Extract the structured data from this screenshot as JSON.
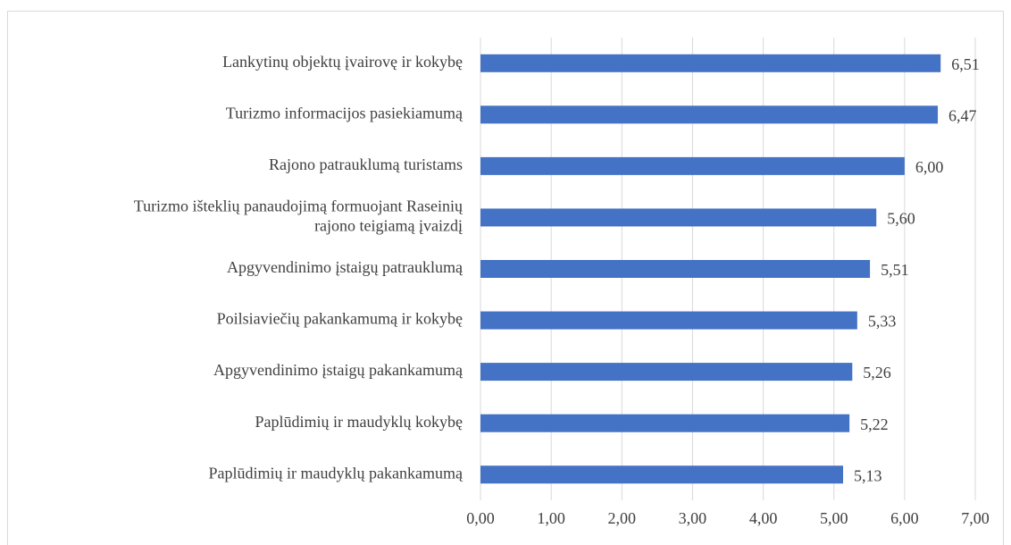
{
  "chart_data": {
    "type": "barh",
    "categories": [
      "Lankytinų objektų įvairovę ir kokybę",
      "Turizmo informacijos pasiekiamumą",
      "Rajono patrauklumą turistams",
      "Turizmo išteklių panaudojimą formuojant Raseinių\nrajono teigiamą įvaizdį",
      "Apgyvendinimo įstaigų patrauklumą",
      "Poilsiaviečių pakankamumą ir kokybę",
      "Apgyvendinimo įstaigų pakankamumą",
      "Paplūdimių ir maudyklų kokybę",
      "Paplūdimių ir maudyklų pakankamumą"
    ],
    "values": [
      6.51,
      6.47,
      6.0,
      5.6,
      5.51,
      5.33,
      5.26,
      5.22,
      5.13
    ],
    "value_labels": [
      "6,51",
      "6,47",
      "6,00",
      "5,60",
      "5,51",
      "5,33",
      "5,26",
      "5,22",
      "5,13"
    ],
    "color": "#4472c4",
    "xlim": [
      0,
      7
    ],
    "xticks": [
      {
        "value": 0,
        "label": "0,00"
      },
      {
        "value": 1,
        "label": "1,00"
      },
      {
        "value": 2,
        "label": "2,00"
      },
      {
        "value": 3,
        "label": "3,00"
      },
      {
        "value": 4,
        "label": "4,00"
      },
      {
        "value": 5,
        "label": "5,00"
      },
      {
        "value": 6,
        "label": "6,00"
      },
      {
        "value": 7,
        "label": "7,00"
      }
    ],
    "grid": true
  }
}
